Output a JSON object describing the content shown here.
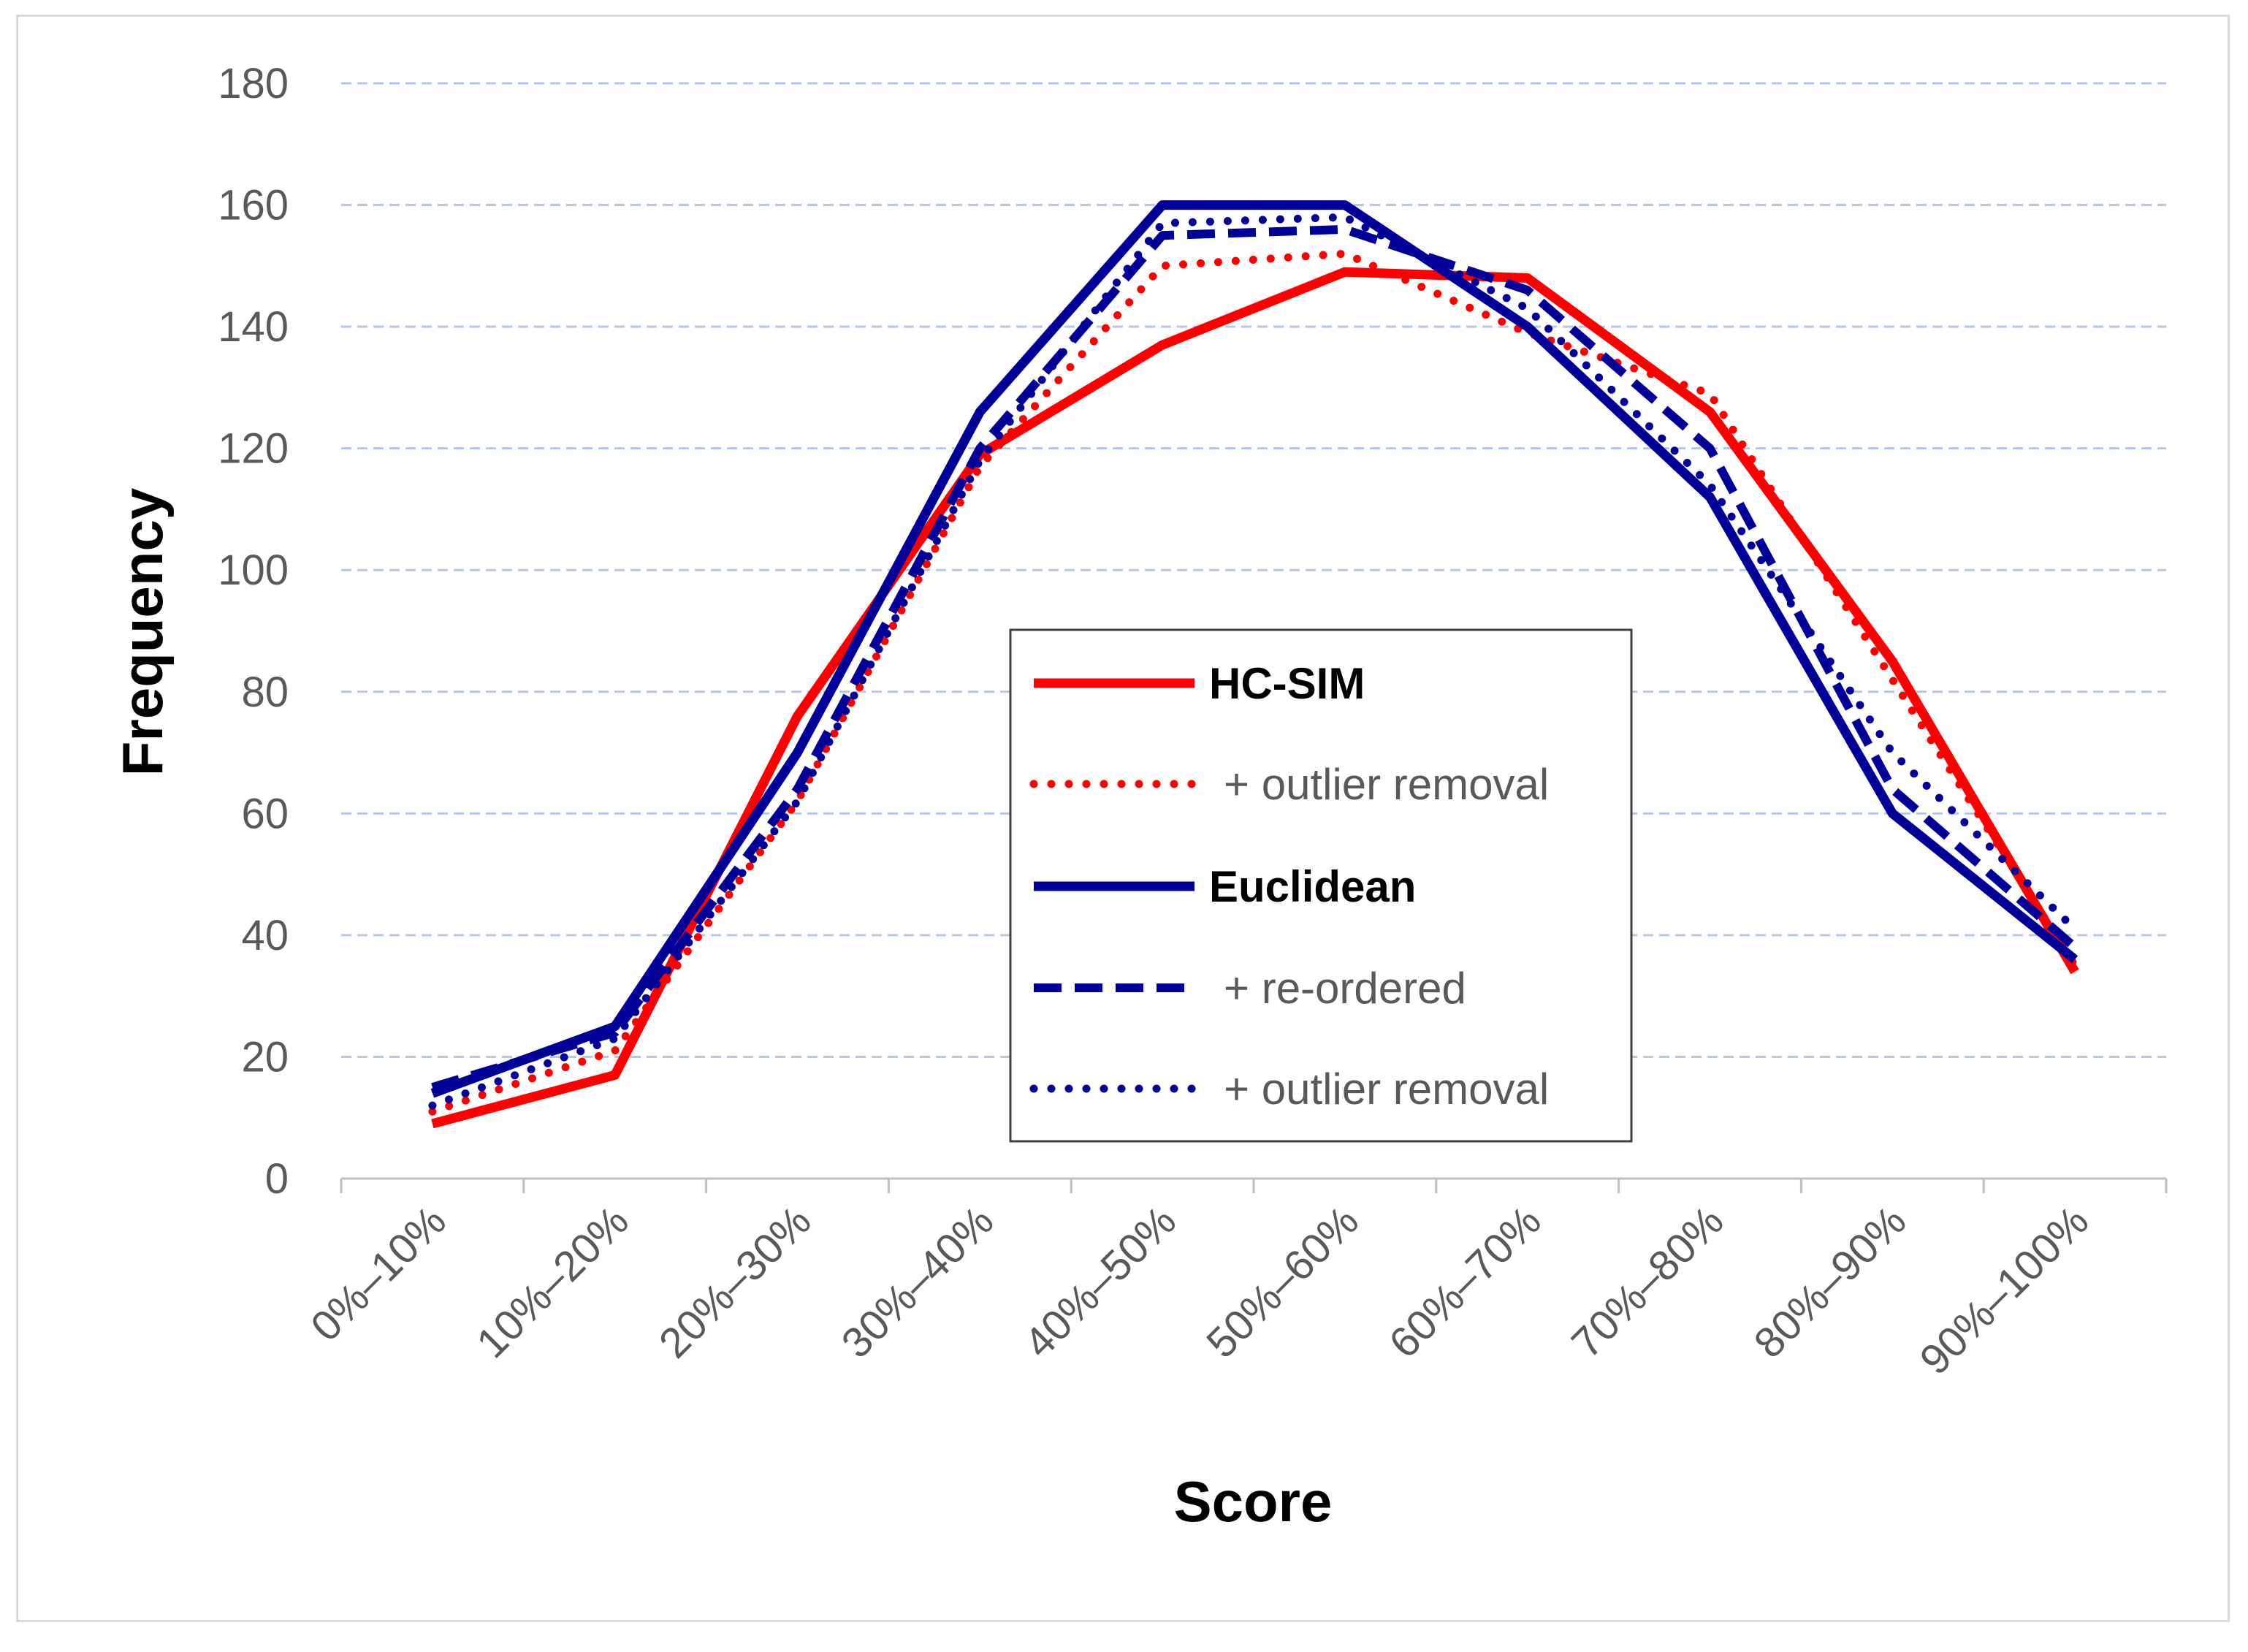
{
  "chart_data": {
    "type": "line",
    "categories": [
      "0%–10%",
      "10%–20%",
      "20%–30%",
      "30%–40%",
      "40%–50%",
      "50%–60%",
      "60%–70%",
      "70%–80%",
      "80%–90%",
      "90%–100%"
    ],
    "xlabel": "Score",
    "ylabel": "Frequency",
    "ylim": [
      0,
      180
    ],
    "yticks": [
      0,
      20,
      40,
      60,
      80,
      100,
      120,
      140,
      160,
      180
    ],
    "grid": "horizontal dashed",
    "legend_position": "center",
    "series": [
      {
        "name": "HC-SIM",
        "bold": true,
        "color": "#ff0000",
        "style": "solid",
        "values": [
          9,
          17,
          76,
          119,
          137,
          149,
          148,
          126,
          85,
          34
        ]
      },
      {
        "name": "+ outlier removal",
        "bold": false,
        "color": "#ff0000",
        "style": "dotted",
        "values": [
          11,
          21,
          62,
          117,
          150,
          152,
          139,
          129,
          82,
          35
        ]
      },
      {
        "name": "Euclidean",
        "bold": true,
        "color": "#000099",
        "style": "solid",
        "values": [
          14,
          25,
          70,
          126,
          160,
          160,
          140,
          112,
          60,
          36
        ]
      },
      {
        "name": "+ re-ordered",
        "bold": false,
        "color": "#000099",
        "style": "dashed",
        "values": [
          15,
          24,
          64,
          120,
          155,
          156,
          146,
          120,
          64,
          38
        ]
      },
      {
        "name": "+ outlier removal",
        "bold": false,
        "color": "#000099",
        "style": "dotted",
        "values": [
          12,
          23,
          62,
          118,
          157,
          158,
          143,
          114,
          70,
          41
        ]
      }
    ]
  }
}
